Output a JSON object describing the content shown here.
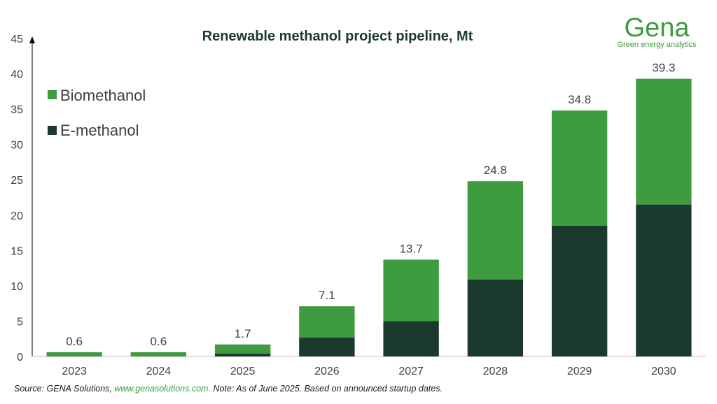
{
  "chart_data": {
    "type": "bar",
    "stacked": true,
    "title": "Renewable methanol project pipeline, Mt",
    "categories": [
      "2023",
      "2024",
      "2025",
      "2026",
      "2027",
      "2028",
      "2029",
      "2030"
    ],
    "series": [
      {
        "name": "E-methanol",
        "color": "#1b3a2d",
        "values": [
          0,
          0,
          0.4,
          2.7,
          5.0,
          10.9,
          18.5,
          21.5
        ]
      },
      {
        "name": "Biomethanol",
        "color": "#3e9b40",
        "values": [
          0.6,
          0.6,
          1.3,
          4.4,
          8.7,
          13.9,
          16.3,
          17.8
        ]
      }
    ],
    "totals": [
      0.6,
      0.6,
      1.7,
      7.1,
      13.7,
      24.8,
      34.8,
      39.3
    ],
    "total_labels": [
      "0.6",
      "0.6",
      "1.7",
      "7.1",
      "13.7",
      "24.8",
      "34.8",
      "39.3"
    ],
    "yticks": [
      "0",
      "5",
      "10",
      "15",
      "20",
      "25",
      "30",
      "35",
      "40",
      "45"
    ],
    "ylim": [
      0,
      45
    ],
    "legend_order": [
      "Biomethanol",
      "E-methanol"
    ],
    "legend_position": "top-left",
    "grid": false
  },
  "logo": {
    "name": "Gena",
    "tagline": "Green energy analytics",
    "color": "#3e9b40"
  },
  "source": {
    "prefix": "Source: GENA Solutions, ",
    "link": "www.genasolutions.com.",
    "suffix": " Note: As of June 2025. Based on announced startup dates."
  }
}
